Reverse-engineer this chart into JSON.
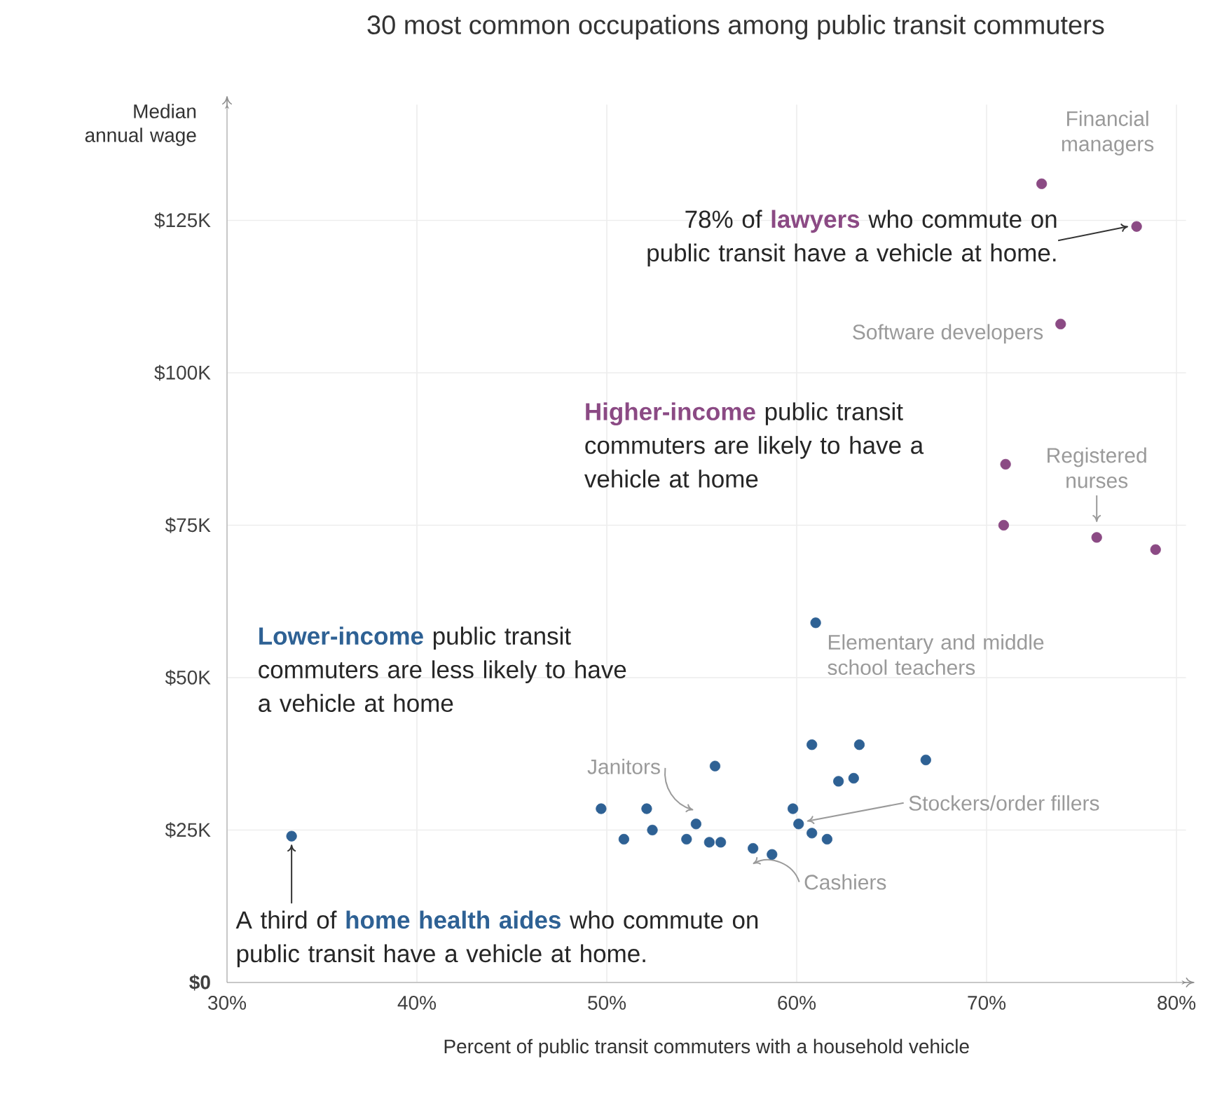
{
  "chart_data": {
    "type": "scatter",
    "title": "30 most common occupations among public transit commuters",
    "xlabel": "Percent of public transit commuters with a household vehicle",
    "ylabel": "Median annual wage",
    "xlim": [
      30,
      80.5
    ],
    "ylim": [
      0,
      144
    ],
    "xticks": [
      {
        "value": 30,
        "label": "30%"
      },
      {
        "value": 40,
        "label": "40%"
      },
      {
        "value": 50,
        "label": "50%"
      },
      {
        "value": 60,
        "label": "60%"
      },
      {
        "value": 70,
        "label": "70%"
      },
      {
        "value": 80,
        "label": "80%"
      }
    ],
    "yticks": [
      {
        "value": 0,
        "label": "**$0**"
      },
      {
        "value": 25,
        "label": "$25K"
      },
      {
        "value": 50,
        "label": "$50K"
      },
      {
        "value": 75,
        "label": "$75K"
      },
      {
        "value": 100,
        "label": "$100K"
      },
      {
        "value": 125,
        "label": "$125K"
      }
    ],
    "grid": true,
    "series": [
      {
        "color": "#8b4a84",
        "x": [
          72.9,
          77.9,
          73.9,
          71.0,
          70.9,
          75.8,
          78.9
        ],
        "values": [
          131,
          124,
          108,
          85,
          75,
          73,
          71
        ]
      },
      {
        "color": "#2e6194",
        "x": [
          33.4,
          61.0,
          60.8,
          63.3,
          66.8,
          55.7,
          62.2,
          63.0,
          49.7,
          52.1,
          59.8,
          60.1,
          54.7,
          50.9,
          52.4,
          54.2,
          55.4,
          56.0,
          57.7,
          58.7,
          60.8,
          61.6
        ],
        "values": [
          24,
          59,
          39,
          39,
          36.5,
          35.5,
          33,
          33.5,
          28.5,
          28.5,
          28.5,
          26,
          26,
          23.5,
          25,
          23.5,
          23,
          23,
          22,
          21,
          24.5,
          23.5
        ]
      }
    ],
    "annotations": [
      {
        "text": "Financial managers",
        "x": 72.9,
        "y": 131
      },
      {
        "text": "78% of **lawyers** who commute on public transit have a vehicle at home.",
        "x": 77.9,
        "y": 124
      },
      {
        "text": "Software developers",
        "x": 73.9,
        "y": 108
      },
      {
        "text": "Registered nurses",
        "x": 75.8,
        "y": 73
      },
      {
        "text": "Elementary and middle school teachers",
        "x": 61.0,
        "y": 59
      },
      {
        "text": "Janitors",
        "x": 54.7,
        "y": 26
      },
      {
        "text": "Stockers/order fillers",
        "x": 60.1,
        "y": 26
      },
      {
        "text": "Cashiers",
        "x": 57.7,
        "y": 22
      },
      {
        "text": "A third of **home health aides** who commute on public transit have a vehicle at home.",
        "x": 33.4,
        "y": 24
      },
      "**Higher-income** public transit commuters are likely to have a vehicle at home",
      "**Lower-income** public transit commuters are less likely to have a vehicle at home"
    ]
  }
}
